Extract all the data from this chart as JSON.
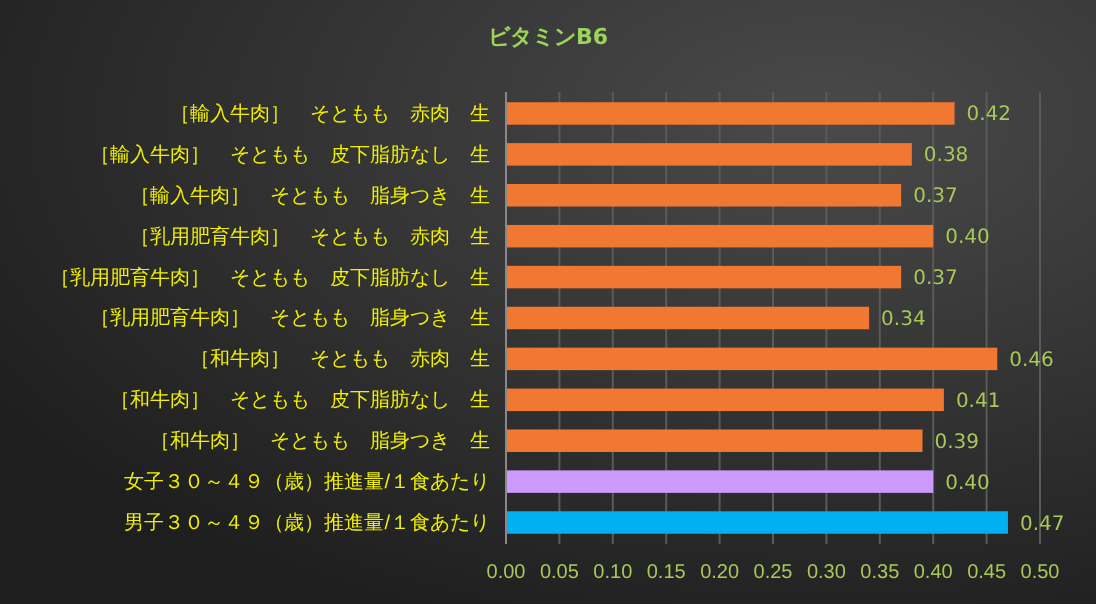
{
  "chart_data": {
    "type": "bar",
    "orientation": "horizontal",
    "title": "ビタミンB6",
    "categories": [
      "［輸入牛肉］　そともも　赤肉　生",
      "［輸入牛肉］　そともも　皮下脂肪なし　生",
      "［輸入牛肉］　そともも　脂身つき　生",
      "［乳用肥育牛肉］　そともも　赤肉　生",
      "［乳用肥育牛肉］　そともも　皮下脂肪なし　生",
      "［乳用肥育牛肉］　そともも　脂身つき　生",
      "［和牛肉］　そともも　赤肉　生",
      "［和牛肉］　そともも　皮下脂肪なし　生",
      "［和牛肉］　そともも　脂身つき　生",
      "女子３０～４９（歳）推進量/１食あたり",
      "男子３０～４９（歳）推進量/１食あたり"
    ],
    "values": [
      0.42,
      0.38,
      0.37,
      0.4,
      0.37,
      0.34,
      0.46,
      0.41,
      0.39,
      0.4,
      0.47
    ],
    "colors": [
      "#f07830",
      "#f07830",
      "#f07830",
      "#f07830",
      "#f07830",
      "#f07830",
      "#f07830",
      "#f07830",
      "#f07830",
      "#cc99ff",
      "#00b0f0"
    ],
    "value_labels": [
      "0.42",
      "0.38",
      "0.37",
      "0.40",
      "0.37",
      "0.34",
      "0.46",
      "0.41",
      "0.39",
      "0.40",
      "0.47"
    ],
    "xlim": [
      0,
      0.5
    ],
    "xticks": [
      {
        "value": 0,
        "label": "0.00"
      },
      {
        "value": 0.05,
        "label": "0.05"
      },
      {
        "value": 0.1,
        "label": "0.10"
      },
      {
        "value": 0.15,
        "label": "0.15"
      },
      {
        "value": 0.2,
        "label": "0.20"
      },
      {
        "value": 0.25,
        "label": "0.25"
      },
      {
        "value": 0.3,
        "label": "0.30"
      },
      {
        "value": 0.35,
        "label": "0.35"
      },
      {
        "value": 0.4,
        "label": "0.40"
      },
      {
        "value": 0.45,
        "label": "0.45"
      },
      {
        "value": 0.5,
        "label": "0.50"
      }
    ],
    "grid": "x"
  }
}
